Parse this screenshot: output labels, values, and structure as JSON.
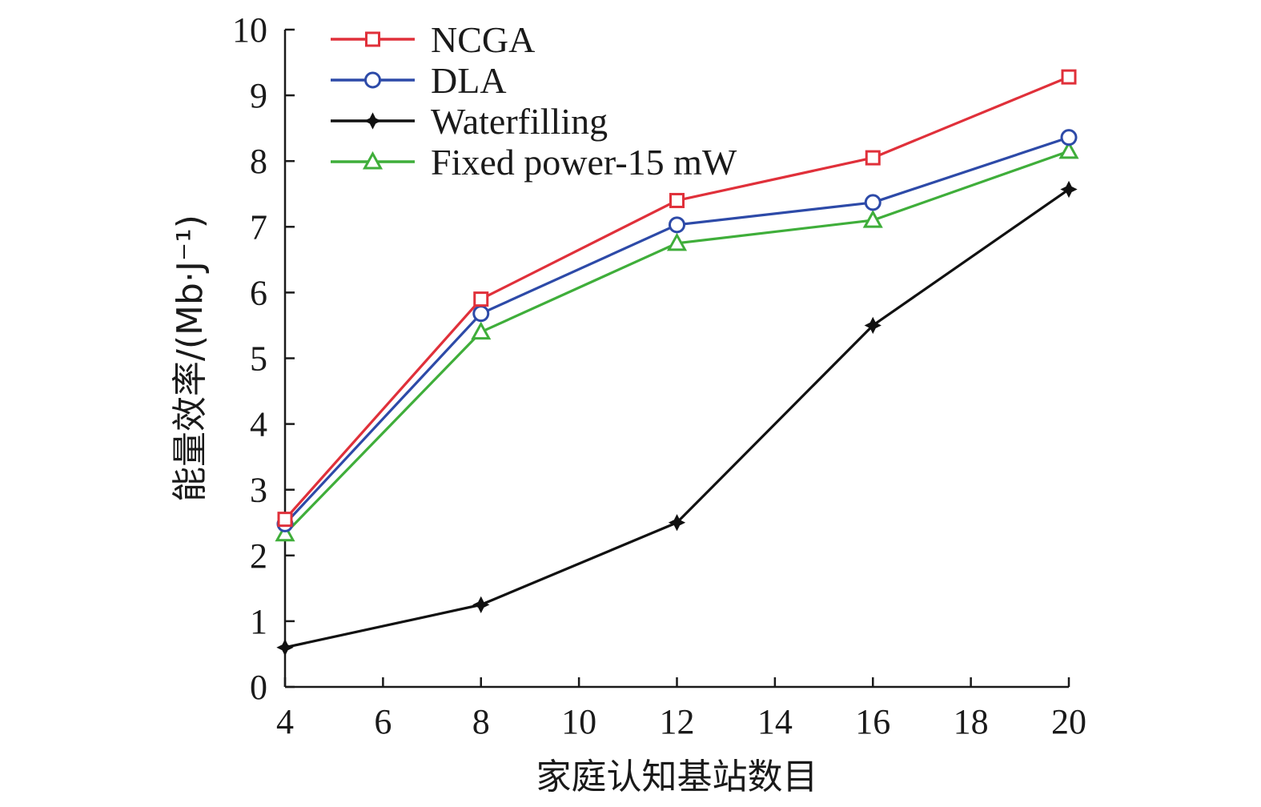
{
  "chart_data": {
    "type": "line",
    "title": "",
    "xlabel": "家庭认知基站数目",
    "ylabel": "能量效率/(Mb·J⁻¹)",
    "x": [
      4,
      8,
      12,
      16,
      20
    ],
    "xticks": [
      "4",
      "6",
      "8",
      "10",
      "12",
      "14",
      "16",
      "18",
      "20"
    ],
    "yticks": [
      "0",
      "1",
      "2",
      "3",
      "4",
      "5",
      "6",
      "7",
      "8",
      "9",
      "10"
    ],
    "xlim": [
      4,
      20
    ],
    "ylim": [
      0,
      10
    ],
    "grid": false,
    "legend_position": "top-left",
    "series": [
      {
        "name": "NCGA",
        "color": "#e0303a",
        "marker": "square",
        "values": [
          2.55,
          5.9,
          7.4,
          8.05,
          9.28
        ]
      },
      {
        "name": "DLA",
        "color": "#2d4aa8",
        "marker": "circle",
        "values": [
          2.48,
          5.68,
          7.03,
          7.37,
          8.36
        ]
      },
      {
        "name": "Waterfilling",
        "color": "#111111",
        "marker": "star",
        "values": [
          0.6,
          1.25,
          2.5,
          5.5,
          7.57
        ]
      },
      {
        "name": "Fixed power-15 mW",
        "color": "#3fae3a",
        "marker": "triangle",
        "values": [
          2.33,
          5.4,
          6.75,
          7.1,
          8.15
        ]
      }
    ]
  }
}
